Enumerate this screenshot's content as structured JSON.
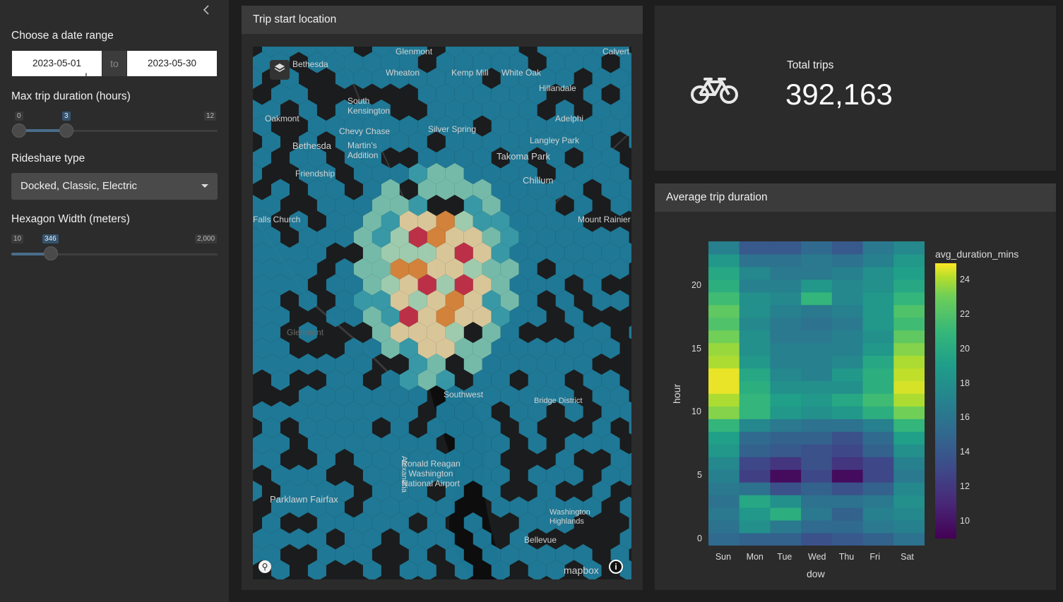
{
  "sidebar": {
    "collapse_icon": "chevron-left-icon",
    "date_range": {
      "label": "Choose a date range",
      "start": "2023-05-01",
      "separator": "to",
      "end": "2023-05-30"
    },
    "max_duration": {
      "label": "Max trip duration (hours)",
      "min": "0",
      "value": "3",
      "max": "12",
      "fraction": 0.25
    },
    "rideshare": {
      "label": "Rideshare type",
      "selected": "Docked, Classic, Electric"
    },
    "hex_width": {
      "label": "Hexagon Width (meters)",
      "min": "10",
      "value": "346",
      "max": "2,000",
      "fraction": 0.169
    }
  },
  "map_card": {
    "title": "Trip start location",
    "layers_icon": "layers-icon",
    "labels": [
      "Glenmont",
      "Calvert",
      "Bethesda",
      "Wheaton",
      "Kemp Mill",
      "White Oak",
      "Hillandale",
      "South Kensington",
      "Oakmont",
      "Chevy Chase",
      "Silver Spring",
      "Adelphi",
      "Bethesda",
      "Martin's Addition",
      "Langley Park",
      "Takoma Park",
      "Chillum",
      "Friendship",
      "Mount Rainier",
      "Glenmont",
      "Falls Church",
      "Southwest",
      "Bridge District",
      "Ronald Reagan Washington National Airport",
      "Parklawn Fairfax",
      "Washington Highlands",
      "Bellevue",
      "mapbox",
      "Alexandria"
    ],
    "attribution_logo": "mapbox-logo",
    "info_icon": "info-icon"
  },
  "value_box": {
    "icon": "bicycle-icon",
    "title": "Total trips",
    "value": "392,163"
  },
  "heatmap_card": {
    "title": "Average trip duration"
  },
  "chart_data": {
    "type": "heatmap",
    "title": "Average trip duration",
    "xlabel": "dow",
    "ylabel": "hour",
    "x": [
      "Sun",
      "Mon",
      "Tue",
      "Wed",
      "Thu",
      "Fri",
      "Sat"
    ],
    "y_ticks": [
      "0",
      "5",
      "10",
      "15",
      "20"
    ],
    "colorbar_title": "avg_duration_mins",
    "colorbar_ticks": [
      "10",
      "12",
      "14",
      "16",
      "18",
      "20",
      "22",
      "24"
    ],
    "zlim": [
      9,
      25
    ],
    "z": [
      [
        14.5,
        14.0,
        14.0,
        13.0,
        13.5,
        14.0,
        15.0
      ],
      [
        15.0,
        17.0,
        15.5,
        14.5,
        14.5,
        15.5,
        16.0
      ],
      [
        15.5,
        17.5,
        19.0,
        15.5,
        14.0,
        16.0,
        16.5
      ],
      [
        15.0,
        18.5,
        17.0,
        15.0,
        15.0,
        15.5,
        17.0
      ],
      [
        15.5,
        15.0,
        13.0,
        14.0,
        13.0,
        14.0,
        16.5
      ],
      [
        16.0,
        12.0,
        9.5,
        12.5,
        9.5,
        12.5,
        15.5
      ],
      [
        16.5,
        12.5,
        11.5,
        13.0,
        11.5,
        12.5,
        16.0
      ],
      [
        17.5,
        14.0,
        13.5,
        13.0,
        12.5,
        14.0,
        17.0
      ],
      [
        18.0,
        14.5,
        14.0,
        14.0,
        13.0,
        14.5,
        18.0
      ],
      [
        19.5,
        16.5,
        15.5,
        15.0,
        15.0,
        16.0,
        19.5
      ],
      [
        22.0,
        19.5,
        17.5,
        17.0,
        17.5,
        19.0,
        21.5
      ],
      [
        23.0,
        19.5,
        18.0,
        17.5,
        18.5,
        20.0,
        23.0
      ],
      [
        24.5,
        19.0,
        17.0,
        17.0,
        17.0,
        19.0,
        24.0
      ],
      [
        24.5,
        18.5,
        16.5,
        16.0,
        17.5,
        19.0,
        23.5
      ],
      [
        23.0,
        17.5,
        16.0,
        16.0,
        16.5,
        18.5,
        23.0
      ],
      [
        22.5,
        17.0,
        16.0,
        16.0,
        16.0,
        17.5,
        22.0
      ],
      [
        21.5,
        17.0,
        15.5,
        15.5,
        16.0,
        17.0,
        21.0
      ],
      [
        20.5,
        16.5,
        15.5,
        15.0,
        15.5,
        17.5,
        20.0
      ],
      [
        21.0,
        17.0,
        16.0,
        15.5,
        16.0,
        17.5,
        20.5
      ],
      [
        20.0,
        17.0,
        16.5,
        19.5,
        16.5,
        17.5,
        19.5
      ],
      [
        19.0,
        16.0,
        16.0,
        17.5,
        16.5,
        17.0,
        18.5
      ],
      [
        18.5,
        16.5,
        15.5,
        15.5,
        16.0,
        17.0,
        18.0
      ],
      [
        17.5,
        15.0,
        15.0,
        15.5,
        15.0,
        16.0,
        17.5
      ],
      [
        16.0,
        13.5,
        13.5,
        14.5,
        13.5,
        15.5,
        16.5
      ]
    ]
  }
}
